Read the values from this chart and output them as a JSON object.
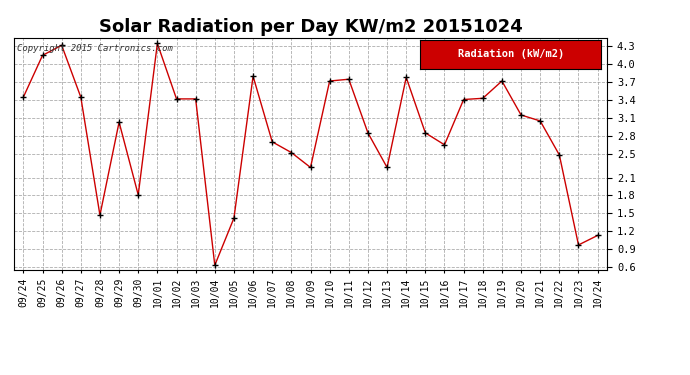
{
  "title": "Solar Radiation per Day KW/m2 20151024",
  "copyright": "Copyright 2015 Cartronics.com",
  "legend_label": "Radiation (kW/m2)",
  "dates": [
    "09/24",
    "09/25",
    "09/26",
    "09/27",
    "09/28",
    "09/29",
    "09/30",
    "10/01",
    "10/02",
    "10/03",
    "10/04",
    "10/05",
    "10/06",
    "10/07",
    "10/08",
    "10/09",
    "10/10",
    "10/11",
    "10/12",
    "10/13",
    "10/14",
    "10/15",
    "10/16",
    "10/17",
    "10/18",
    "10/19",
    "10/20",
    "10/21",
    "10/22",
    "10/23",
    "10/24"
  ],
  "values": [
    3.45,
    4.15,
    4.32,
    3.45,
    1.47,
    3.03,
    1.81,
    4.35,
    3.42,
    3.42,
    0.63,
    1.42,
    3.8,
    2.7,
    2.52,
    2.27,
    3.72,
    3.75,
    2.85,
    2.27,
    3.78,
    2.85,
    2.65,
    3.41,
    3.43,
    3.72,
    3.15,
    3.05,
    2.48,
    0.97,
    1.13
  ],
  "line_color": "#cc0000",
  "marker_color": "#000000",
  "bg_color": "#ffffff",
  "plot_bg": "#e8e8e8",
  "grid_color": "#999999",
  "ylim": [
    0.55,
    4.45
  ],
  "yticks": [
    0.6,
    0.9,
    1.2,
    1.5,
    1.8,
    2.1,
    2.5,
    2.8,
    3.1,
    3.4,
    3.7,
    4.0,
    4.3
  ],
  "title_fontsize": 13,
  "legend_bg": "#cc0000",
  "legend_text_color": "#ffffff",
  "fig_width": 6.9,
  "fig_height": 3.75,
  "dpi": 100
}
